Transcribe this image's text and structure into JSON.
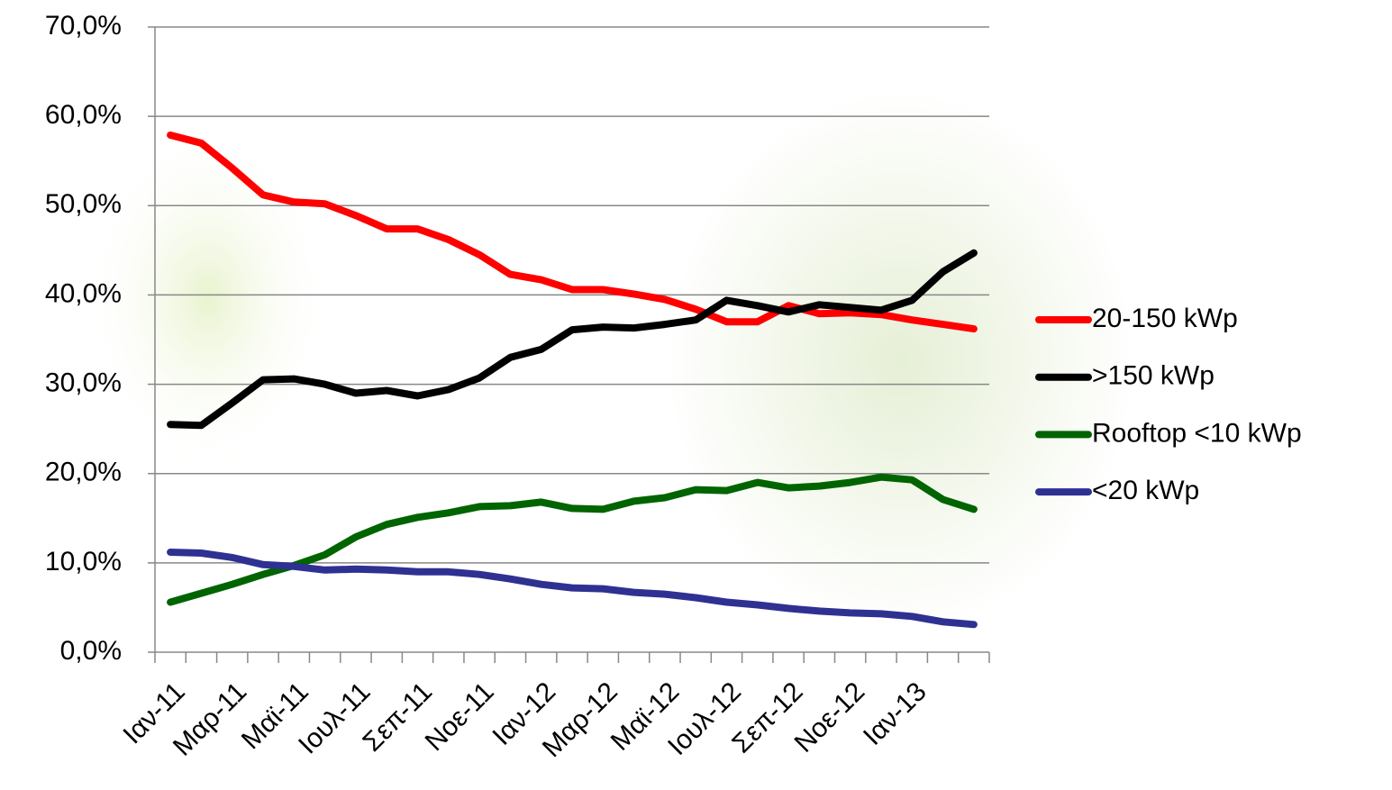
{
  "chart_data": {
    "type": "line",
    "categories": [
      "Ιαν-11",
      null,
      "Μαρ-11",
      null,
      "Μαϊ-11",
      null,
      "Ιουλ-11",
      null,
      "Σεπ-11",
      null,
      "Νοε-11",
      null,
      "Ιαν-12",
      null,
      "Μαρ-12",
      null,
      "Μαϊ-12",
      null,
      "Ιουλ-12",
      null,
      "Σεπ-12",
      null,
      "Νοε-12",
      null,
      "Ιαν-13",
      null,
      null
    ],
    "series": [
      {
        "name": "20-150 kWp",
        "color": "#ff0000",
        "values": [
          57.9,
          57.0,
          54.2,
          51.2,
          50.4,
          50.2,
          48.9,
          47.4,
          47.4,
          46.2,
          44.5,
          42.3,
          41.7,
          40.6,
          40.6,
          40.1,
          39.5,
          38.4,
          37.0,
          37.0,
          38.8,
          37.9,
          38.0,
          37.8,
          37.2,
          36.7,
          36.2
        ]
      },
      {
        "name": ">150 kWp",
        "color": "#000000",
        "values": [
          25.5,
          25.4,
          27.9,
          30.5,
          30.6,
          30.0,
          29.0,
          29.3,
          28.7,
          29.4,
          30.7,
          33.0,
          33.9,
          36.1,
          36.4,
          36.3,
          36.7,
          37.2,
          39.4,
          38.8,
          38.1,
          38.9,
          38.6,
          38.3,
          39.4,
          42.6,
          44.7
        ]
      },
      {
        "name": "Rooftop <10 kWp",
        "color": "#006400",
        "values": [
          5.6,
          6.6,
          7.6,
          8.7,
          9.7,
          10.9,
          12.9,
          14.3,
          15.1,
          15.6,
          16.3,
          16.4,
          16.8,
          16.1,
          16.0,
          16.9,
          17.3,
          18.2,
          18.1,
          19.0,
          18.4,
          18.6,
          19.0,
          19.6,
          19.3,
          17.1,
          16.0
        ]
      },
      {
        "name": "<20 kWp",
        "color": "#2e3192",
        "values": [
          11.2,
          11.1,
          10.6,
          9.8,
          9.6,
          9.2,
          9.3,
          9.2,
          9.0,
          9.0,
          8.7,
          8.2,
          7.6,
          7.2,
          7.1,
          6.7,
          6.5,
          6.1,
          5.6,
          5.3,
          4.9,
          4.6,
          4.4,
          4.3,
          4.0,
          3.4,
          3.1
        ]
      }
    ],
    "ylim": [
      0,
      70
    ],
    "yticks": [
      {
        "value": 0,
        "label": "0,0%"
      },
      {
        "value": 10,
        "label": "10,0%"
      },
      {
        "value": 20,
        "label": "20,0%"
      },
      {
        "value": 30,
        "label": "30,0%"
      },
      {
        "value": 40,
        "label": "40,0%"
      },
      {
        "value": 50,
        "label": "50,0%"
      },
      {
        "value": 60,
        "label": "60,0%"
      },
      {
        "value": 70,
        "label": "70,0%"
      }
    ],
    "grid": true,
    "legend": "right"
  }
}
